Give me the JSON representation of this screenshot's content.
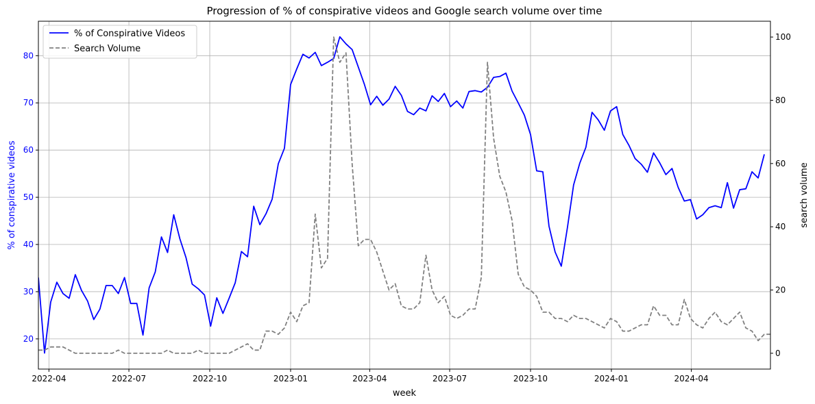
{
  "chart_data": {
    "type": "line",
    "title": "Progression of % of conspirative videos and Google search volume over time",
    "xlabel": "week",
    "ylabel_left": "% of conspirative videos",
    "ylabel_right": "search volume",
    "x_tick_labels": [
      "2022-04",
      "2022-07",
      "2022-10",
      "2023-01",
      "2023-04",
      "2023-07",
      "2023-10",
      "2024-01",
      "2024-04"
    ],
    "x_tick_dates": [
      "2022-04-01",
      "2022-07-01",
      "2022-10-01",
      "2023-01-01",
      "2023-04-01",
      "2023-07-01",
      "2023-10-01",
      "2024-01-01",
      "2024-04-01"
    ],
    "xlim": [
      "2022-03-20",
      "2024-06-30"
    ],
    "x_dates": [
      "2022-03-20",
      "2022-03-27",
      "2022-04-03",
      "2022-04-10",
      "2022-04-17",
      "2022-04-24",
      "2022-05-01",
      "2022-05-08",
      "2022-05-15",
      "2022-05-22",
      "2022-05-29",
      "2022-06-05",
      "2022-06-12",
      "2022-06-19",
      "2022-06-26",
      "2022-07-03",
      "2022-07-10",
      "2022-07-17",
      "2022-07-24",
      "2022-07-31",
      "2022-08-07",
      "2022-08-14",
      "2022-08-21",
      "2022-08-28",
      "2022-09-04",
      "2022-09-11",
      "2022-09-18",
      "2022-09-25",
      "2022-10-02",
      "2022-10-09",
      "2022-10-16",
      "2022-10-23",
      "2022-10-30",
      "2022-11-06",
      "2022-11-13",
      "2022-11-20",
      "2022-11-27",
      "2022-12-04",
      "2022-12-11",
      "2022-12-18",
      "2022-12-25",
      "2023-01-01",
      "2023-01-08",
      "2023-01-15",
      "2023-01-22",
      "2023-01-29",
      "2023-02-05",
      "2023-02-12",
      "2023-02-19",
      "2023-02-26",
      "2023-03-05",
      "2023-03-12",
      "2023-03-19",
      "2023-03-26",
      "2023-04-02",
      "2023-04-09",
      "2023-04-16",
      "2023-04-23",
      "2023-04-30",
      "2023-05-07",
      "2023-05-14",
      "2023-05-21",
      "2023-05-28",
      "2023-06-04",
      "2023-06-11",
      "2023-06-18",
      "2023-06-25",
      "2023-07-02",
      "2023-07-09",
      "2023-07-16",
      "2023-07-23",
      "2023-07-30",
      "2023-08-06",
      "2023-08-13",
      "2023-08-20",
      "2023-08-27",
      "2023-09-03",
      "2023-09-10",
      "2023-09-17",
      "2023-09-24",
      "2023-10-01",
      "2023-10-08",
      "2023-10-15",
      "2023-10-22",
      "2023-10-29",
      "2023-11-05",
      "2023-11-12",
      "2023-11-19",
      "2023-11-26",
      "2023-12-03",
      "2023-12-10",
      "2023-12-17",
      "2023-12-24",
      "2023-12-31",
      "2024-01-07",
      "2024-01-14",
      "2024-01-21",
      "2024-01-28",
      "2024-02-04",
      "2024-02-11",
      "2024-02-18",
      "2024-02-25",
      "2024-03-03",
      "2024-03-10",
      "2024-03-17",
      "2024-03-24",
      "2024-03-31",
      "2024-04-07",
      "2024-04-14",
      "2024-04-21",
      "2024-04-28",
      "2024-05-05",
      "2024-05-12",
      "2024-05-19",
      "2024-05-26",
      "2024-06-02",
      "2024-06-09",
      "2024-06-16",
      "2024-06-23",
      "2024-06-30"
    ],
    "series": [
      {
        "name": "% of Conspirative Videos",
        "axis": "left",
        "color": "#0000ff",
        "style": "solid",
        "values": [
          33.0,
          17.0,
          27.8,
          32.0,
          29.6,
          28.6,
          33.6,
          30.3,
          28.0,
          24.1,
          26.3,
          31.3,
          31.3,
          29.6,
          33.0,
          27.5,
          27.5,
          20.8,
          30.8,
          34.2,
          41.6,
          38.3,
          46.3,
          41.2,
          37.2,
          31.6,
          30.6,
          29.3,
          22.7,
          28.7,
          25.4,
          28.6,
          31.9,
          38.5,
          37.4,
          48.1,
          44.2,
          46.5,
          49.6,
          57.1,
          60.4,
          73.9,
          77.2,
          80.3,
          79.5,
          80.7,
          77.9,
          78.6,
          79.4,
          84.0,
          82.5,
          81.3,
          77.6,
          73.9,
          69.6,
          71.4,
          69.5,
          70.8,
          73.5,
          71.6,
          68.2,
          67.5,
          68.9,
          68.3,
          71.5,
          70.3,
          72.0,
          69.2,
          70.4,
          68.9,
          72.4,
          72.6,
          72.3,
          73.3,
          75.4,
          75.6,
          76.3,
          72.5,
          70.0,
          67.4,
          63.3,
          55.6,
          55.4,
          43.9,
          38.4,
          35.4,
          43.6,
          52.6,
          57.2,
          60.6,
          68.0,
          66.4,
          64.2,
          68.3,
          69.2,
          63.3,
          61.0,
          58.2,
          57.0,
          55.3,
          59.4,
          57.3,
          54.8,
          56.1,
          52.1,
          49.2,
          49.5,
          45.4,
          46.3,
          47.8,
          48.2,
          47.8,
          53.1,
          47.7,
          51.6,
          51.8,
          55.4,
          54.1,
          59.1
        ]
      },
      {
        "name": "Search Volume",
        "axis": "right",
        "color": "#808080",
        "style": "dashed",
        "values": [
          1,
          1,
          2,
          2,
          2,
          1,
          0,
          0,
          0,
          0,
          0,
          0,
          0,
          1,
          0,
          0,
          0,
          0,
          0,
          0,
          0,
          1,
          0,
          0,
          0,
          0,
          1,
          0,
          0,
          0,
          0,
          0,
          1,
          2,
          3,
          1,
          1,
          7,
          7,
          6,
          8,
          13,
          10,
          15,
          16,
          44,
          27,
          30,
          100,
          92,
          95,
          60,
          34,
          36,
          36,
          32,
          26,
          20,
          22,
          15,
          14,
          14,
          16,
          31,
          20,
          16,
          18,
          12,
          11,
          12,
          14,
          14,
          24,
          92,
          68,
          56,
          51,
          42,
          25,
          21,
          20,
          18,
          13,
          13,
          11,
          11,
          10,
          12,
          11,
          11,
          10,
          9,
          8,
          11,
          10,
          7,
          7,
          8,
          9,
          9,
          15,
          12,
          12,
          9,
          9,
          17,
          11,
          9,
          8,
          11,
          13,
          10,
          9,
          11,
          13,
          8,
          7,
          4,
          6,
          6
        ]
      }
    ],
    "ylim_left": [
      13.6,
      87.3
    ],
    "yticks_left": [
      20,
      30,
      40,
      50,
      60,
      70,
      80
    ],
    "ylim_right": [
      -5,
      105
    ],
    "yticks_right": [
      0,
      20,
      40,
      60,
      80,
      100
    ],
    "grid": true,
    "legend": "top-left"
  }
}
